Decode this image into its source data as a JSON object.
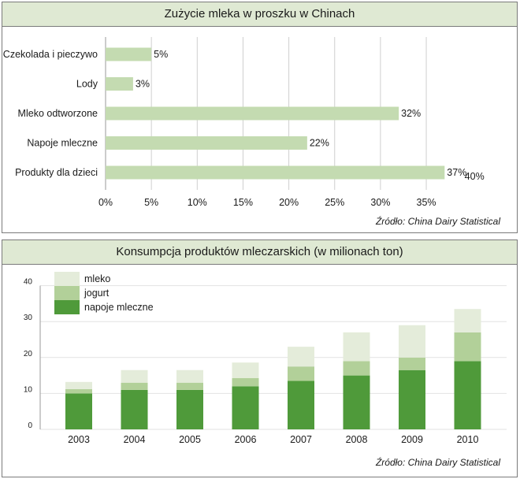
{
  "chart_data": [
    {
      "type": "bar",
      "orientation": "horizontal",
      "title": "Zużycie mleka w proszku w Chinach",
      "categories": [
        "Czekolada i pieczywo",
        "Lody",
        "Mleko odtworzone",
        "Napoje mleczne",
        "Produkty dla dzieci"
      ],
      "values": [
        5,
        3,
        32,
        22,
        37
      ],
      "value_labels": [
        "5%",
        "3%",
        "32%",
        "22%",
        "37%"
      ],
      "extra_label": "40%",
      "xticks": [
        "0%",
        "5%",
        "10%",
        "15%",
        "20%",
        "25%",
        "30%",
        "35%"
      ],
      "xlim": [
        0,
        40
      ],
      "grid": true,
      "bar_color": "#c4dbb1",
      "source": "Źródło: China Dairy Statistical"
    },
    {
      "type": "bar",
      "stacked": true,
      "title": "Konsumpcja produktów mleczarskich (w milionach ton)",
      "categories": [
        "2003",
        "2004",
        "2005",
        "2006",
        "2007",
        "2008",
        "2009",
        "2010"
      ],
      "series": [
        {
          "name": "napoje mleczne",
          "color": "#4f9a3a",
          "values": [
            10,
            11,
            11,
            12,
            13.5,
            15,
            16.5,
            19
          ]
        },
        {
          "name": "jogurt",
          "color": "#b2d099",
          "values": [
            1.2,
            2,
            2,
            2.3,
            4,
            4,
            3.5,
            8
          ]
        },
        {
          "name": "mleko",
          "color": "#e4ecda",
          "values": [
            2,
            3.5,
            3.5,
            4.3,
            5.5,
            8,
            9,
            6.5
          ]
        }
      ],
      "yticks": [
        "0",
        "10",
        "20",
        "30",
        "40"
      ],
      "ylim": [
        0,
        40
      ],
      "grid": true,
      "legend_position": "top-left",
      "source": "Źródło: China Dairy Statistical"
    }
  ]
}
